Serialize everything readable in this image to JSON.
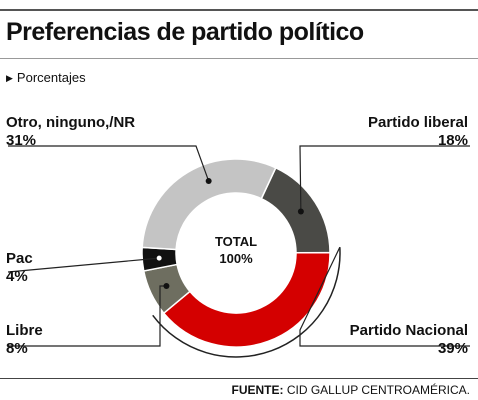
{
  "title": "Preferencias de partido político",
  "subtitle": "Porcentajes",
  "source_label": "FUENTE:",
  "source_text": "CID GALLUP CENTROAMÉRICA.",
  "center_label_1": "TOTAL",
  "center_label_2": "100%",
  "chart_data": {
    "type": "pie",
    "title": "Preferencias de partido político",
    "unit": "Porcentajes",
    "slices": [
      {
        "name": "Partido liberal",
        "value": 18,
        "label": "18%",
        "color": "#4a4a46"
      },
      {
        "name": "Partido Nacional",
        "value": 39,
        "label": "39%",
        "color": "#d40000"
      },
      {
        "name": "Libre",
        "value": 8,
        "label": "8%",
        "color": "#6e6e60"
      },
      {
        "name": "Pac",
        "value": 4,
        "label": "4%",
        "color": "#111111"
      },
      {
        "name": "Otro, ninguno,/NR",
        "value": 31,
        "label": "31%",
        "color": "#c4c4c4"
      }
    ],
    "donut": true,
    "legend": "callout labels"
  }
}
